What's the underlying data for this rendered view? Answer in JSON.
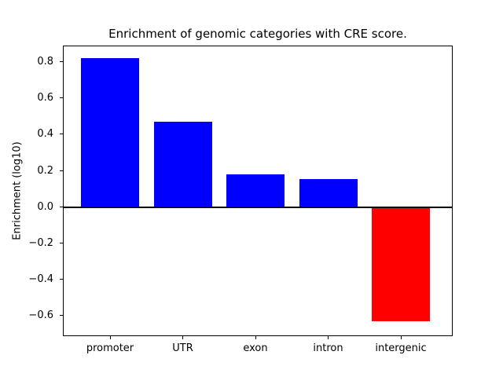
{
  "chart_data": {
    "type": "bar",
    "title": "Enrichment of genomic categories with CRE score.",
    "xlabel": "",
    "ylabel": "Enrichment (log10)",
    "categories": [
      "promoter",
      "UTR",
      "exon",
      "intron",
      "intergenic"
    ],
    "values": [
      0.82,
      0.47,
      0.18,
      0.155,
      -0.63
    ],
    "bar_colors": [
      "#0000ff",
      "#0000ff",
      "#0000ff",
      "#0000ff",
      "#ff0000"
    ],
    "positive_color": "#0000ff",
    "negative_color": "#ff0000",
    "yticks": [
      0.8,
      0.6,
      0.4,
      0.2,
      0.0,
      -0.2,
      -0.4,
      -0.6
    ],
    "ytick_labels": [
      "0.8",
      "0.6",
      "0.4",
      "0.2",
      "0.0",
      "−0.2",
      "−0.4",
      "−0.6"
    ],
    "ylim": [
      -0.713,
      0.889
    ],
    "grid": false,
    "legend": null,
    "zero_line": true,
    "bar_width_fraction": 0.8,
    "axis_color": "#000000",
    "background_color": "#ffffff"
  }
}
